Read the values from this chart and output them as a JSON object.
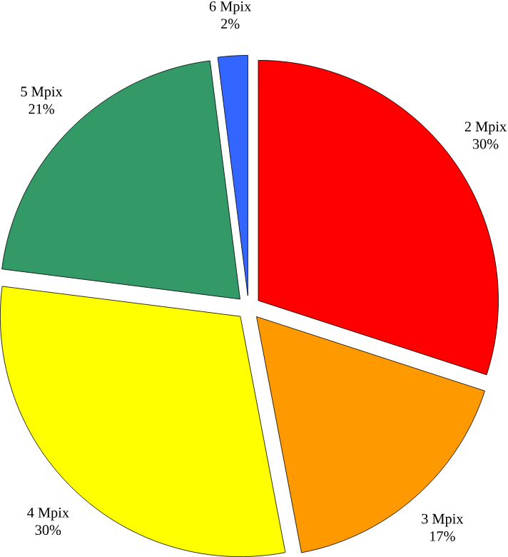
{
  "chart_data": {
    "type": "pie",
    "categories": [
      "2 Mpix",
      "3 Mpix",
      "4 Mpix",
      "5 Mpix",
      "6 Mpix"
    ],
    "values": [
      30,
      17,
      30,
      21,
      2
    ],
    "colors": [
      "#ff0000",
      "#ff9900",
      "#ffff00",
      "#339966",
      "#3366ff"
    ],
    "value_labels": [
      "30%",
      "17%",
      "30%",
      "21%",
      "2%"
    ]
  }
}
